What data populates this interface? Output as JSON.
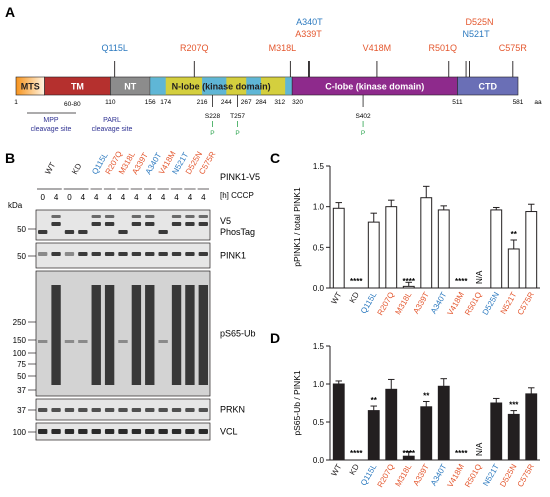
{
  "colors": {
    "blue": "#2b79bf",
    "orange": "#e4572e",
    "mts_start": "#f7941d",
    "mts_end": "#fff4e2",
    "tm": "#b5302e",
    "nt": "#8c8c8c",
    "nlobe_blue": "#5fb6d6",
    "nlobe_yellow": "#d4cf3e",
    "clobe": "#8e2a8c",
    "ctd": "#6a6fb6",
    "green": "#2ea44f",
    "navy": "#2e3192"
  },
  "panelA": {
    "label": "A",
    "mutations": [
      {
        "text": "Q115L",
        "pos": 115,
        "row": 2,
        "color": "blue"
      },
      {
        "text": "R207Q",
        "pos": 207,
        "row": 2,
        "color": "orange"
      },
      {
        "text": "A340T",
        "pos": 340,
        "row": 0,
        "color": "blue"
      },
      {
        "text": "A339T",
        "pos": 339,
        "row": 1,
        "color": "orange"
      },
      {
        "text": "M318L",
        "pos": 318,
        "row": 2,
        "color": "orange"
      },
      {
        "text": "V418M",
        "pos": 418,
        "row": 2,
        "color": "orange"
      },
      {
        "text": "R501Q",
        "pos": 501,
        "row": 2,
        "color": "orange"
      },
      {
        "text": "D525N",
        "pos": 525,
        "row": 0,
        "color": "orange"
      },
      {
        "text": "N521T",
        "pos": 521,
        "row": 1,
        "color": "blue"
      },
      {
        "text": "C575R",
        "pos": 575,
        "row": 2,
        "color": "orange"
      }
    ],
    "domains": [
      {
        "name": "MTS",
        "start": 1,
        "end": 34,
        "fill": "mts"
      },
      {
        "name": "TM",
        "start": 34,
        "end": 110,
        "fill": "tm"
      },
      {
        "name": "NT",
        "start": 110,
        "end": 156,
        "fill": "nt"
      },
      {
        "name": "N-lobe (kinase domain)",
        "start": 156,
        "end": 320,
        "fill": "nlobe"
      },
      {
        "name": "C-lobe (kinase domain)",
        "start": 320,
        "end": 511,
        "fill": "clobe"
      },
      {
        "name": "CTD",
        "start": 511,
        "end": 581,
        "fill": "ctd"
      }
    ],
    "positions": [
      "1",
      "110",
      "156",
      "174",
      "216",
      "244",
      "267",
      "284",
      "312",
      "320",
      "511",
      "581"
    ],
    "aa_label": "aa",
    "range_label": "60-80",
    "mpp": "MPP",
    "parl": "PARL",
    "cleavage": "cleavage site",
    "phospho_sites": [
      {
        "label": "S228",
        "pos": 228
      },
      {
        "label": "T257",
        "pos": 257
      },
      {
        "label": "S402",
        "pos": 402
      }
    ],
    "p_label": "P"
  },
  "panelB": {
    "label": "B",
    "lanes": [
      {
        "name": "WT",
        "color": "black",
        "cccp": [
          "0",
          "4"
        ]
      },
      {
        "name": "KD",
        "color": "black",
        "cccp": [
          "0",
          "4"
        ]
      },
      {
        "name": "Q115L",
        "color": "blue",
        "cccp": [
          "4"
        ]
      },
      {
        "name": "R207Q",
        "color": "orange",
        "cccp": [
          "4"
        ]
      },
      {
        "name": "M318L",
        "color": "orange",
        "cccp": [
          "4"
        ]
      },
      {
        "name": "A339T",
        "color": "orange",
        "cccp": [
          "4"
        ]
      },
      {
        "name": "A340T",
        "color": "blue",
        "cccp": [
          "4"
        ]
      },
      {
        "name": "V418M",
        "color": "orange",
        "cccp": [
          "4"
        ]
      },
      {
        "name": "N521T",
        "color": "blue",
        "cccp": [
          "4"
        ]
      },
      {
        "name": "D525N",
        "color": "orange",
        "cccp": [
          "4"
        ]
      },
      {
        "name": "C575R",
        "color": "orange",
        "cccp": [
          "4"
        ]
      }
    ],
    "construct": "PINK1-V5",
    "cccp_label": "[h] CCCP",
    "kda": "kDa",
    "blots": [
      {
        "name": "V5 PhosTag",
        "line1": "V5",
        "line2": "PhosTag",
        "markers": [
          "50"
        ]
      },
      {
        "name": "PINK1",
        "line1": "PINK1",
        "markers": [
          "50"
        ]
      },
      {
        "name": "pS65-Ub",
        "line1": "pS65-Ub",
        "markers": [
          "250",
          "150",
          "100",
          "75",
          "50",
          "37"
        ]
      },
      {
        "name": "PRKN",
        "line1": "PRKN",
        "markers": [
          "37"
        ]
      },
      {
        "name": "VCL",
        "line1": "VCL",
        "markers": [
          "100"
        ]
      }
    ]
  },
  "chart_data": [
    {
      "type": "bar",
      "panel": "C",
      "ylabel": "pPINK1 / total PINK1",
      "ylim": [
        0,
        1.5
      ],
      "yticks": [
        "0.0",
        "0.5",
        "1.0",
        "1.5"
      ],
      "categories": [
        "WT",
        "KD",
        "Q115L",
        "R207Q",
        "M318L",
        "A339T",
        "A340T",
        "V418M",
        "R501Q",
        "D525N",
        "N521T",
        "C575R"
      ],
      "category_colors": [
        "black",
        "black",
        "blue",
        "orange",
        "orange",
        "orange",
        "blue",
        "orange",
        "orange",
        "blue",
        "orange",
        "orange"
      ],
      "values": [
        0.98,
        0.0,
        0.81,
        1.0,
        0.02,
        1.11,
        0.96,
        0.0,
        null,
        0.96,
        0.48,
        0.94
      ],
      "errors": [
        0.07,
        0.0,
        0.11,
        0.08,
        0.05,
        0.14,
        0.05,
        0.0,
        null,
        0.03,
        0.11,
        0.09
      ],
      "annotations": [
        "",
        "****",
        "",
        "",
        "****",
        "",
        "",
        "****",
        "N/A",
        "",
        "**",
        ""
      ],
      "fill": "white"
    },
    {
      "type": "bar",
      "panel": "D",
      "ylabel": "pS65-Ub / PINK1",
      "ylim": [
        0,
        1.5
      ],
      "yticks": [
        "0.0",
        "0.5",
        "1.0",
        "1.5"
      ],
      "categories": [
        "WT",
        "KD",
        "Q115L",
        "R207Q",
        "M318L",
        "A339T",
        "A340T",
        "V418M",
        "R501Q",
        "N521T",
        "D525N",
        "C575R"
      ],
      "category_colors": [
        "black",
        "black",
        "blue",
        "orange",
        "orange",
        "orange",
        "blue",
        "orange",
        "orange",
        "blue",
        "orange",
        "orange"
      ],
      "values": [
        1.0,
        0.0,
        0.65,
        0.93,
        0.05,
        0.7,
        0.97,
        0.0,
        null,
        0.75,
        0.6,
        0.87
      ],
      "errors": [
        0.04,
        0.0,
        0.06,
        0.13,
        0.06,
        0.07,
        0.1,
        0.0,
        null,
        0.06,
        0.05,
        0.08
      ],
      "annotations": [
        "",
        "****",
        "**",
        "",
        "****",
        "**",
        "",
        "****",
        "N/A",
        "",
        "***",
        ""
      ],
      "fill": "black"
    }
  ]
}
